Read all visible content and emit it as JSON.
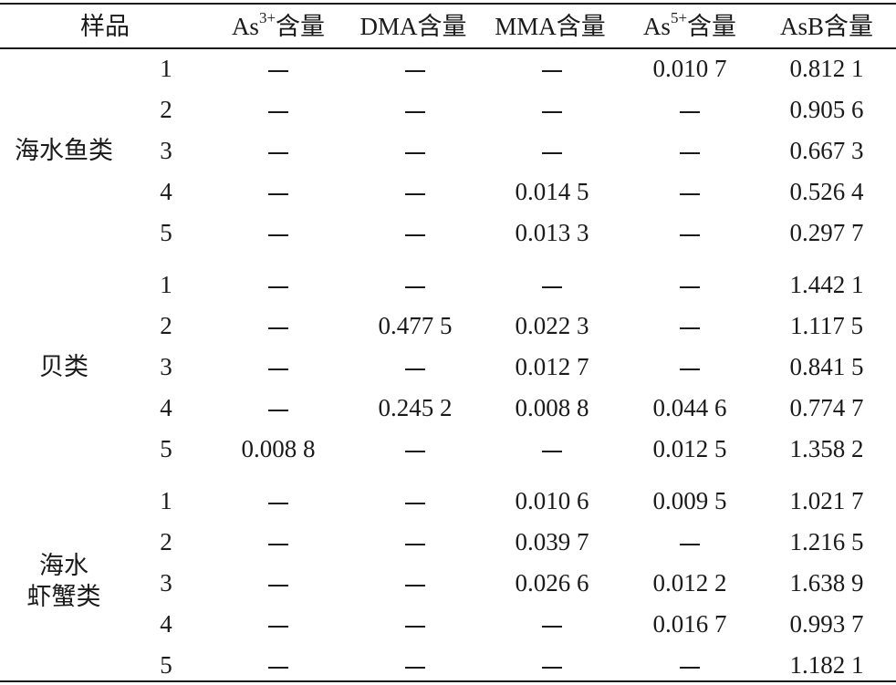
{
  "table": {
    "headers": {
      "sample": "样品",
      "as3": {
        "base": "As",
        "sup": "3+",
        "tail": "含量"
      },
      "dma": "DMA含量",
      "mma": "MMA含量",
      "as5": {
        "base": "As",
        "sup": "5+",
        "tail": "含量"
      },
      "asb": "AsB含量"
    },
    "groups": [
      {
        "label_lines": [
          "海水鱼类"
        ],
        "rows": [
          {
            "no": "1",
            "as3": "—",
            "dma": "—",
            "mma": "—",
            "as5": "0.010 7",
            "asb": "0.812 1"
          },
          {
            "no": "2",
            "as3": "—",
            "dma": "—",
            "mma": "—",
            "as5": "—",
            "asb": "0.905 6"
          },
          {
            "no": "3",
            "as3": "—",
            "dma": "—",
            "mma": "—",
            "as5": "—",
            "asb": "0.667 3"
          },
          {
            "no": "4",
            "as3": "—",
            "dma": "—",
            "mma": "0.014 5",
            "as5": "—",
            "asb": "0.526 4"
          },
          {
            "no": "5",
            "as3": "—",
            "dma": "—",
            "mma": "0.013 3",
            "as5": "—",
            "asb": "0.297 7"
          }
        ]
      },
      {
        "label_lines": [
          "贝类"
        ],
        "rows": [
          {
            "no": "1",
            "as3": "—",
            "dma": "—",
            "mma": "—",
            "as5": "—",
            "asb": "1.442 1"
          },
          {
            "no": "2",
            "as3": "—",
            "dma": "0.477 5",
            "mma": "0.022 3",
            "as5": "—",
            "asb": "1.117 5"
          },
          {
            "no": "3",
            "as3": "—",
            "dma": "—",
            "mma": "0.012 7",
            "as5": "—",
            "asb": "0.841 5"
          },
          {
            "no": "4",
            "as3": "—",
            "dma": "0.245 2",
            "mma": "0.008 8",
            "as5": "0.044 6",
            "asb": "0.774 7"
          },
          {
            "no": "5",
            "as3": "0.008 8",
            "dma": "—",
            "mma": "—",
            "as5": "0.012 5",
            "asb": "1.358 2"
          }
        ]
      },
      {
        "label_lines": [
          "海水",
          "虾蟹类"
        ],
        "rows": [
          {
            "no": "1",
            "as3": "—",
            "dma": "—",
            "mma": "0.010 6",
            "as5": "0.009 5",
            "asb": "1.021 7"
          },
          {
            "no": "2",
            "as3": "—",
            "dma": "—",
            "mma": "0.039 7",
            "as5": "—",
            "asb": "1.216 5"
          },
          {
            "no": "3",
            "as3": "—",
            "dma": "—",
            "mma": "0.026 6",
            "as5": "0.012 2",
            "asb": "1.638 9"
          },
          {
            "no": "4",
            "as3": "—",
            "dma": "—",
            "mma": "—",
            "as5": "0.016 7",
            "asb": "0.993 7"
          },
          {
            "no": "5",
            "as3": "—",
            "dma": "—",
            "mma": "—",
            "as5": "—",
            "asb": "1.182 1"
          }
        ]
      }
    ]
  }
}
